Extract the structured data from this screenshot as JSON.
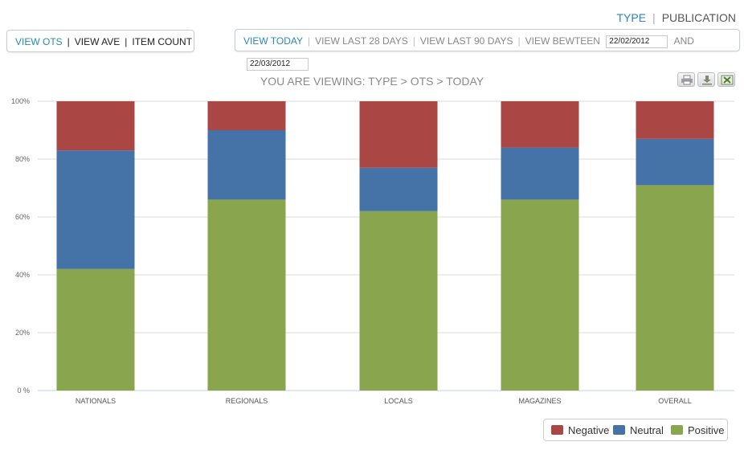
{
  "header_tabs": {
    "active": "TYPE",
    "other": "PUBLICATION"
  },
  "metric_tabs": {
    "active": "VIEW OTS",
    "items": [
      "VIEW AVE",
      "ITEM COUNT"
    ]
  },
  "range_bar": {
    "active": "VIEW TODAY",
    "items": [
      "VIEW LAST 28 DAYS",
      "VIEW LAST 90 DAYS"
    ],
    "between_label": "VIEW BEWTEEN",
    "date_from": "22/02/2012",
    "and_label": "AND",
    "date_to": "22/03/2012"
  },
  "viewing_label": "YOU ARE VIEWING: TYPE > OTS > TODAY",
  "toolbar": {
    "icons": [
      "print-icon",
      "download-icon",
      "excel-icon"
    ]
  },
  "colors": {
    "negative": "#aa4643",
    "neutral": "#4572a7",
    "positive": "#89a54e",
    "accent": "#2a86b8"
  },
  "chart_data": {
    "type": "bar",
    "stacked": true,
    "percent": true,
    "categories": [
      "NATIONALS",
      "REGIONALS",
      "LOCALS",
      "MAGAZINES",
      "OVERALL"
    ],
    "series": [
      {
        "name": "Positive",
        "values": [
          42,
          66,
          62,
          66,
          71
        ]
      },
      {
        "name": "Neutral",
        "values": [
          41,
          24,
          15,
          18,
          16
        ]
      },
      {
        "name": "Negative",
        "values": [
          17,
          10,
          23,
          16,
          13
        ]
      }
    ],
    "yticks": [
      "0 %",
      "20%",
      "40%",
      "60%",
      "80%",
      "100%"
    ],
    "ylim": [
      0,
      100
    ],
    "grid": true,
    "legend": "bottom-right"
  }
}
